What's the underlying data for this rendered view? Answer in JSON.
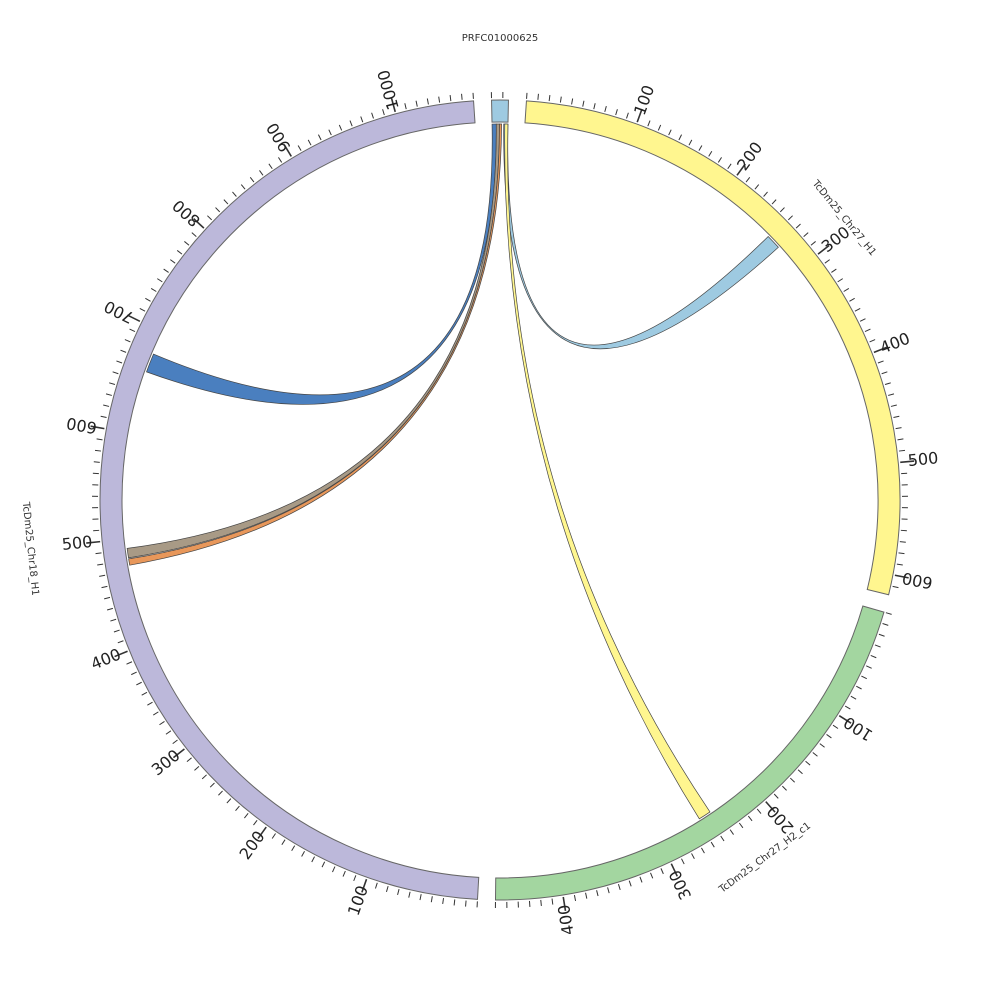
{
  "diagram": {
    "type": "circos",
    "segments": [
      {
        "id": "prfc",
        "name": "PRFC01000625",
        "length": 15,
        "color": "#9ecae1"
      },
      {
        "id": "chr27h1",
        "name": "TcDm25_Chr27_H1",
        "length": 618,
        "color": "#fff68f"
      },
      {
        "id": "chr27h2",
        "name": "TcDm25_Chr27_H2_c1",
        "length": 460,
        "color": "#a3d6a0"
      },
      {
        "id": "chr18",
        "name": "TcDm25_Chr18_H1",
        "length": 1070,
        "color": "#bcb8da"
      }
    ],
    "tick_labels": {
      "chr27h1": [
        "100",
        "200",
        "300",
        "400",
        "500",
        "600"
      ],
      "chr27h2": [
        "100",
        "200",
        "300",
        "400"
      ],
      "chr18": [
        "100",
        "200",
        "300",
        "400",
        "500",
        "600",
        "700",
        "800",
        "900",
        "1000"
      ]
    },
    "links": [
      {
        "from": "prfc",
        "from_range": [
          0,
          4
        ],
        "to": "chr18",
        "to_range": [
          660,
          678
        ],
        "color": "#4a7fbf"
      },
      {
        "from": "prfc",
        "from_range": [
          4,
          7
        ],
        "to": "chr18",
        "to_range": [
          482,
          491
        ],
        "color": "#a89a86"
      },
      {
        "from": "prfc",
        "from_range": [
          7,
          9
        ],
        "to": "chr18",
        "to_range": [
          475,
          481
        ],
        "color": "#e8975a"
      },
      {
        "from": "prfc",
        "from_range": [
          11,
          15
        ],
        "to": "chr27h1",
        "to_range": [
          258,
          272
        ],
        "color": "#9ecae1"
      },
      {
        "from": "prfc",
        "from_range": [
          12,
          15
        ],
        "to": "chr27h2",
        "to_range": [
          246,
          258
        ],
        "color": "#fff68f"
      }
    ]
  }
}
